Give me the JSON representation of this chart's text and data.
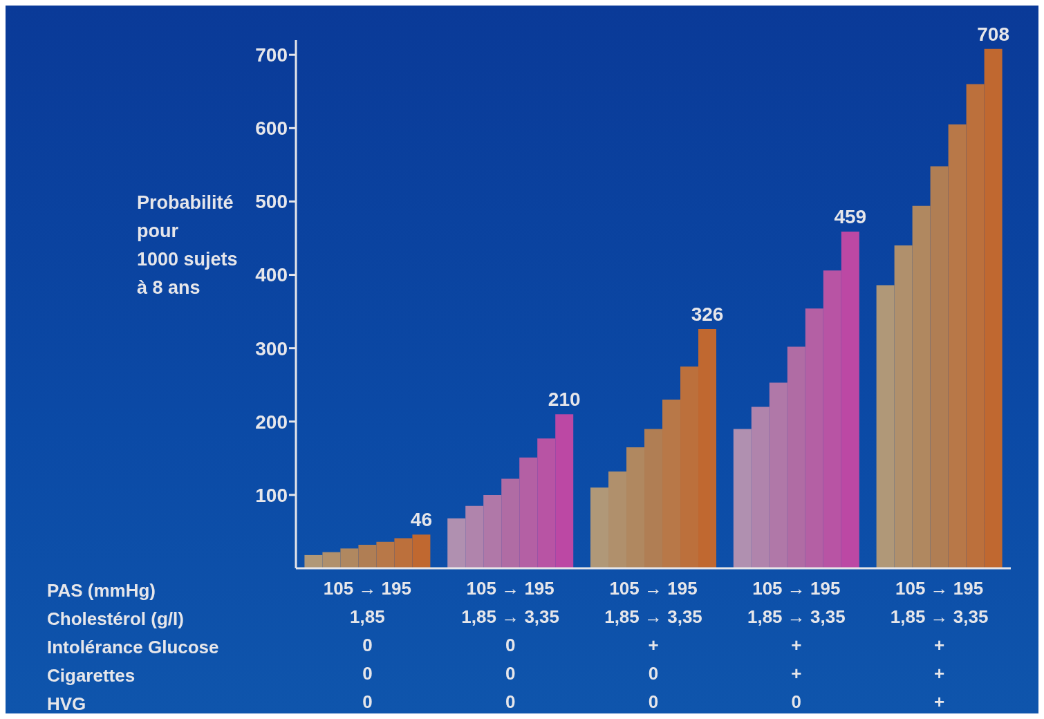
{
  "chart_data": {
    "type": "bar",
    "ylabel": "Probabilité\npour\n1000 sujets\nà 8 ans",
    "categories": [
      "105 → 195\n1,85\n0\n0\n0",
      "105 → 195\n1,85 → 3,35\n0\n0\n0",
      "105 → 195\n1,85 → 3,35\n+\n0\n0",
      "105 → 195\n1,85 → 3,35\n+\n+\n0",
      "105 → 195\n1,85 → 3,35\n+\n+\n+"
    ],
    "series": [
      {
        "colors": [
          "#b09878",
          "#b090b0",
          "#b09878",
          "#b090b0",
          "#b09878"
        ],
        "values": [
          18,
          68,
          110,
          190,
          386
        ]
      },
      {
        "colors": [
          "#b0906c",
          "#b084ac",
          "#b0906c",
          "#b084ac",
          "#b0906c"
        ],
        "values": [
          22,
          85,
          132,
          220,
          440
        ]
      },
      {
        "colors": [
          "#b08860",
          "#b078a8",
          "#b08860",
          "#b078a8",
          "#b08860"
        ],
        "values": [
          27,
          100,
          165,
          253,
          494
        ]
      },
      {
        "colors": [
          "#b07e54",
          "#b06ca4",
          "#b07e54",
          "#b06ca4",
          "#b07e54"
        ],
        "values": [
          32,
          122,
          190,
          302,
          548
        ]
      },
      {
        "colors": [
          "#b87848",
          "#b460a4",
          "#b87848",
          "#b460a4",
          "#b87848"
        ],
        "values": [
          36,
          151,
          230,
          354,
          605
        ]
      },
      {
        "colors": [
          "#bc703c",
          "#b854a4",
          "#bc703c",
          "#b854a4",
          "#bc703c"
        ],
        "values": [
          41,
          177,
          275,
          406,
          660
        ]
      },
      {
        "colors": [
          "#c06830",
          "#bc48a4",
          "#c06830",
          "#bc48a4",
          "#c06830"
        ],
        "values": [
          46,
          210,
          326,
          459,
          708
        ],
        "value_labels": [
          "46",
          "210",
          "326",
          "459",
          "708"
        ]
      }
    ],
    "ylim": [
      0,
      720
    ],
    "yticks": [
      100,
      200,
      300,
      400,
      500,
      600,
      700
    ],
    "annotations": [
      "PAS (mmHg)",
      "Cholestérol (g/l)",
      "Intolérance Glucose",
      "Cigarettes",
      "HVG"
    ]
  }
}
